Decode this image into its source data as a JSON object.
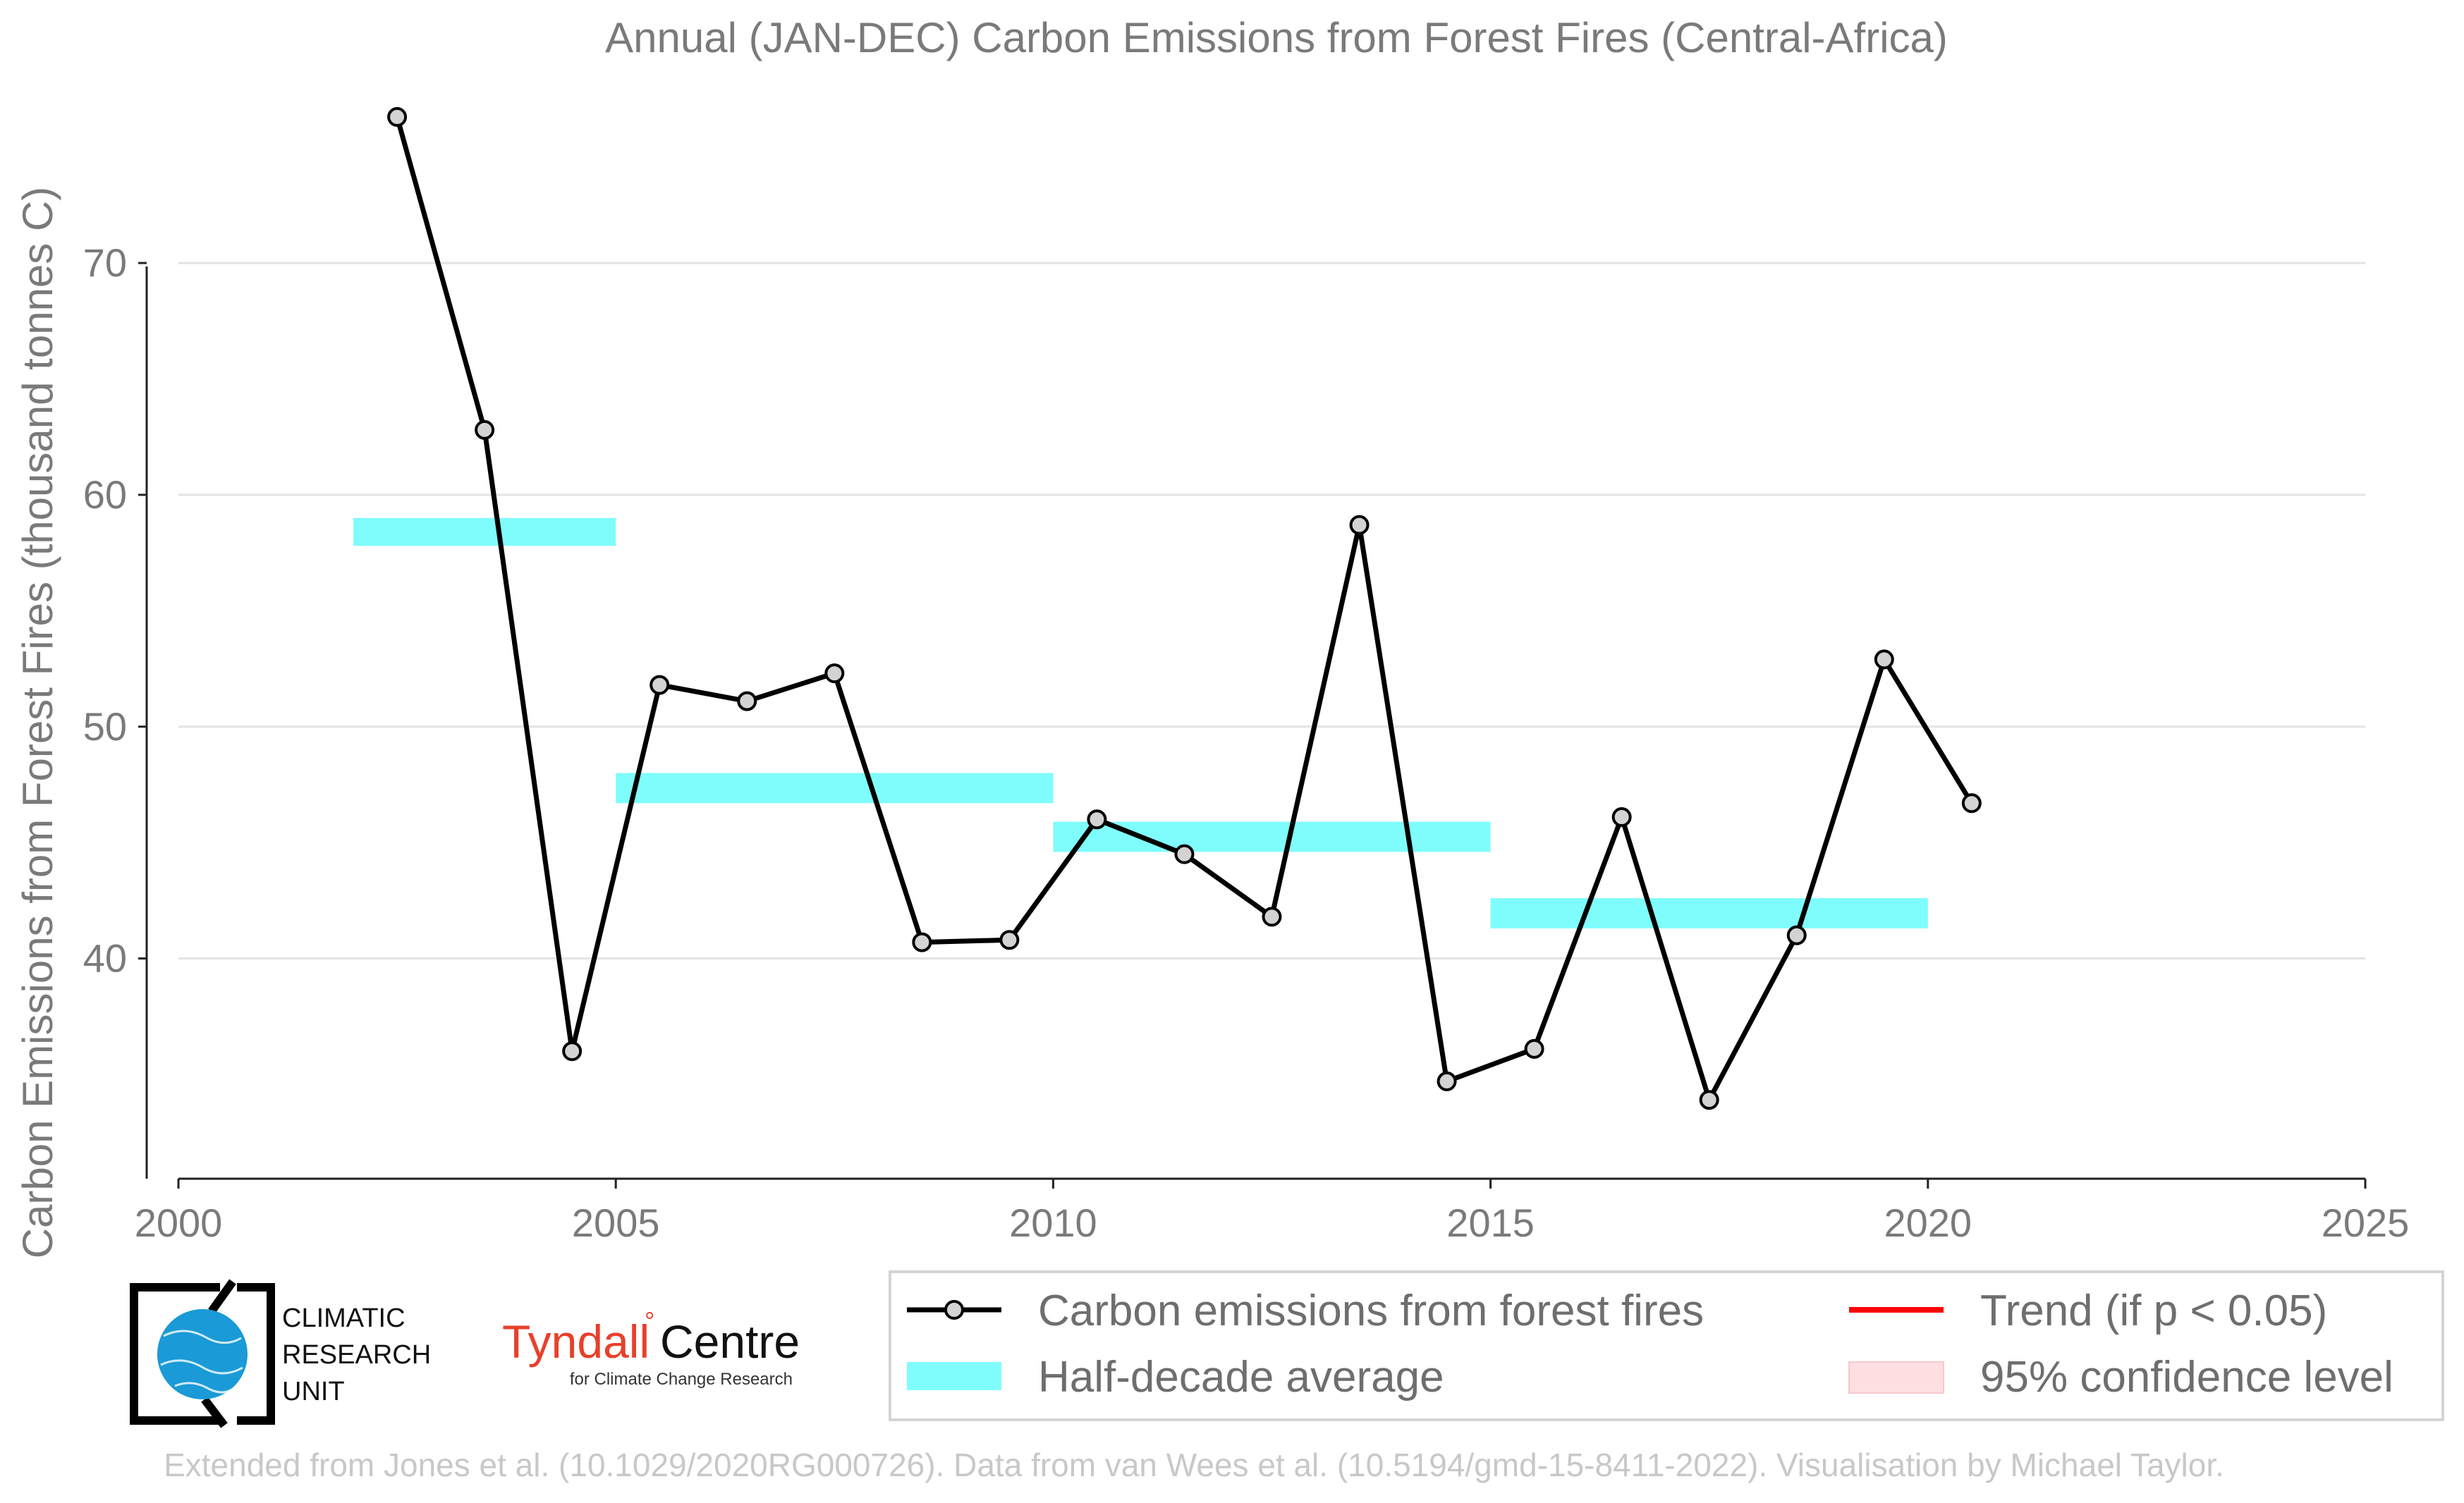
{
  "chart_data": {
    "type": "line",
    "title": "Annual (JAN-DEC) Carbon Emissions from Forest Fires (Central-Africa)",
    "xlabel": "",
    "ylabel": "Carbon Emissions from Forest Fires (thousand tonnes C)",
    "xlim": [
      2000,
      2025
    ],
    "ylim": [
      30.5,
      78
    ],
    "x_ticks": [
      "2000",
      "2005",
      "2010",
      "2015",
      "2020",
      "2025"
    ],
    "y_ticks": [
      "40",
      "50",
      "60",
      "70"
    ],
    "grid": "horizontal",
    "legend_position": "bottom",
    "series": [
      {
        "name": "Carbon emissions from forest fires",
        "color": "#000000",
        "marker_color": "#d3d3d3",
        "x": [
          2002.5,
          2003.5,
          2004.5,
          2005.5,
          2006.5,
          2007.5,
          2008.5,
          2009.5,
          2010.5,
          2011.5,
          2012.5,
          2013.5,
          2014.5,
          2015.5,
          2016.5,
          2017.5,
          2018.5,
          2019.5,
          2020.5
        ],
        "y": [
          76.3,
          62.8,
          36.0,
          51.8,
          51.1,
          52.3,
          40.7,
          40.8,
          46.0,
          44.5,
          41.8,
          58.7,
          34.7,
          36.1,
          46.1,
          33.9,
          41.0,
          52.9,
          46.7
        ]
      }
    ],
    "half_decade_average": {
      "name": "Half-decade average",
      "color": "#7ffdfd",
      "bands": [
        {
          "x0": 2002,
          "x1": 2005,
          "y0": 57.8,
          "y1": 59.0
        },
        {
          "x0": 2005,
          "x1": 2010,
          "y0": 46.7,
          "y1": 48.0
        },
        {
          "x0": 2010,
          "x1": 2015,
          "y0": 44.6,
          "y1": 45.9
        },
        {
          "x0": 2015,
          "x1": 2020,
          "y0": 41.3,
          "y1": 42.6
        }
      ]
    },
    "legend": {
      "line": "Carbon emissions from forest fires",
      "band": "Half-decade average",
      "trend": "Trend (if p < 0.05)",
      "confidence": "95% confidence level",
      "trend_color": "#ff0000",
      "confidence_color": "#ffdfe1"
    }
  },
  "logos": {
    "cru_line1": "CLIMATIC",
    "cru_line2": "RESEARCH",
    "cru_line3": "UNIT",
    "tyndall_name": "Tyndall",
    "tyndall_centre": "Centre",
    "tyndall_sub": "for Climate Change Research"
  },
  "credit": "Extended from Jones et al. (10.1029/2020RG000726). Data from van Wees et al. (10.5194/gmd-15-8411-2022). Visualisation by Michael Taylor."
}
